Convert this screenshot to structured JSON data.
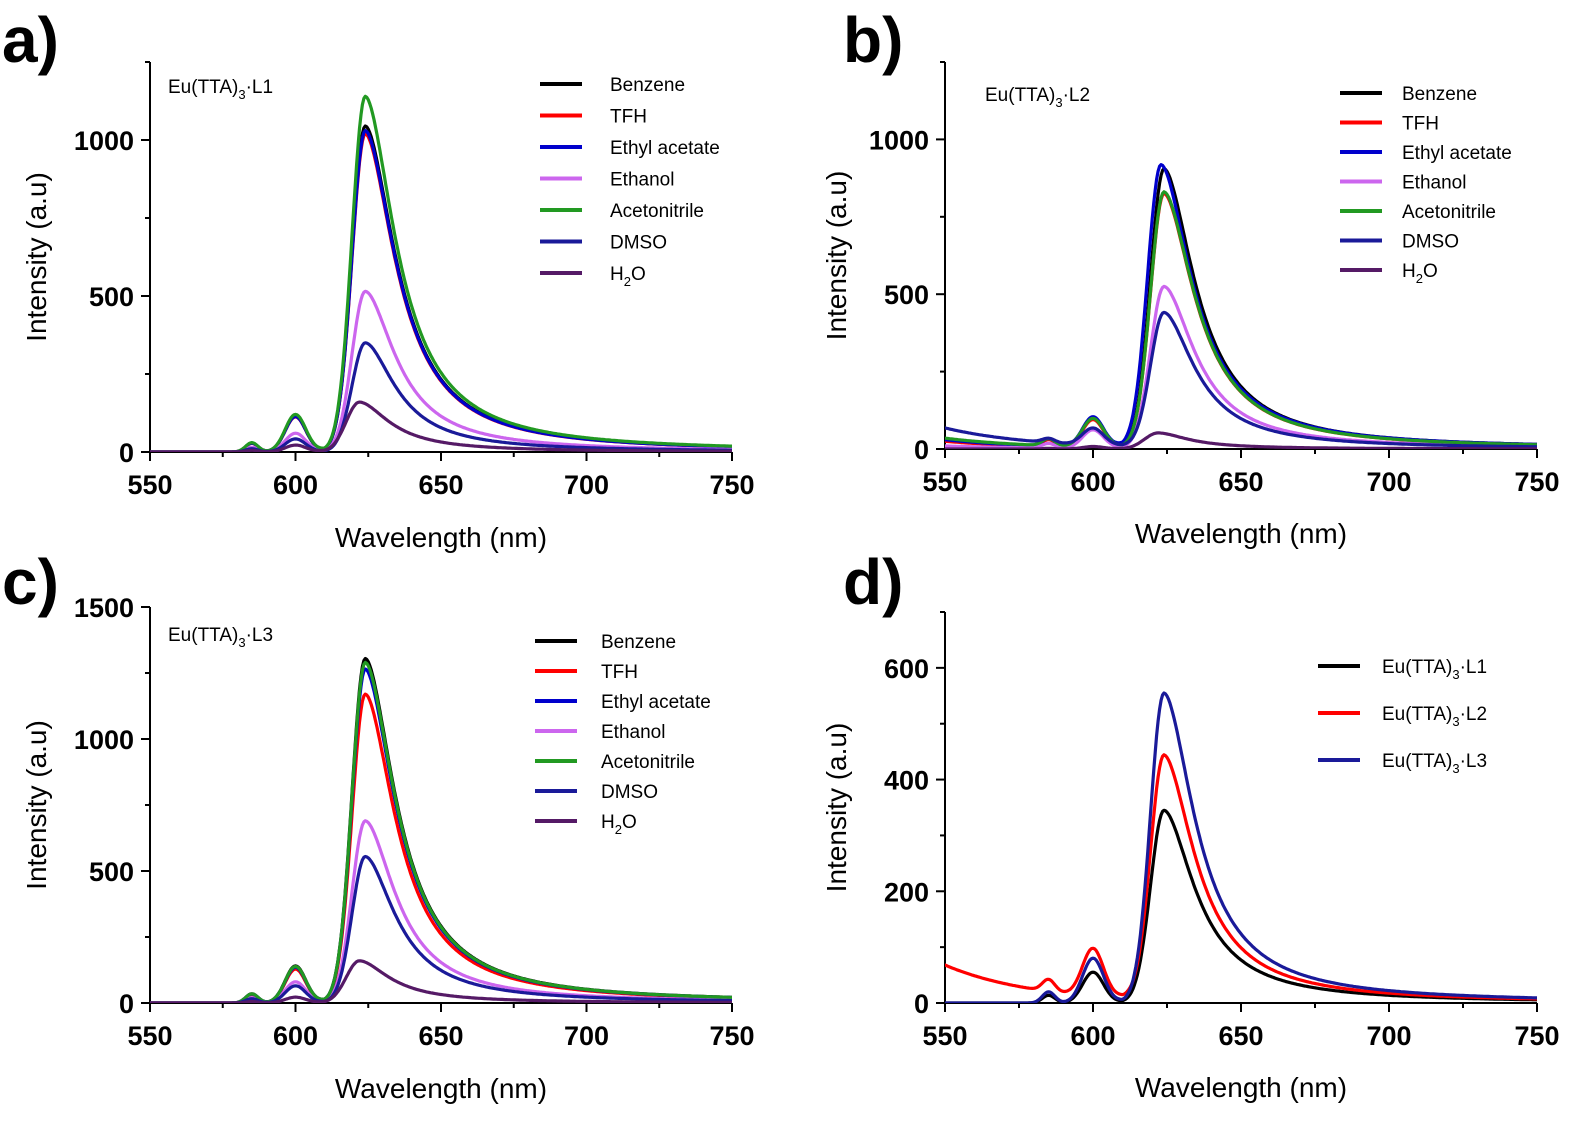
{
  "chart_data": [
    {
      "panel": "a)",
      "type": "line",
      "inset_label": {
        "prefix": "Eu(TTA)",
        "sub": "3",
        "suffix": "·L1"
      },
      "xlabel": "Wavelength (nm)",
      "ylabel": "Intensity (a.u)",
      "xlim": [
        550,
        750
      ],
      "ylim": [
        0,
        1250
      ],
      "xticks": [
        550,
        600,
        650,
        700,
        750
      ],
      "yticks": [
        0,
        500,
        1000
      ],
      "legend_position": "top-right",
      "series": [
        {
          "name": "Benzene",
          "color": "#000000",
          "peak": 1045,
          "shoulder": 115,
          "peak_x": 624,
          "tail": 0
        },
        {
          "name": "TFH",
          "color": "#ff0000",
          "peak": 1020,
          "shoulder": 112,
          "peak_x": 624,
          "tail": 0
        },
        {
          "name": "Ethyl acetate",
          "color": "#0000cc",
          "peak": 1030,
          "shoulder": 113,
          "peak_x": 624,
          "tail": 0
        },
        {
          "name": "Ethanol",
          "color": "#cc66ee",
          "peak": 515,
          "shoulder": 60,
          "peak_x": 624,
          "tail": 0
        },
        {
          "name": "Acetonitrile",
          "color": "#229922",
          "peak": 1140,
          "shoulder": 120,
          "peak_x": 624,
          "tail": 0
        },
        {
          "name": "DMSO",
          "color": "#1a1a99",
          "peak": 350,
          "shoulder": 42,
          "peak_x": 624,
          "tail": 0
        },
        {
          "name": "H2O",
          "label": "H",
          "label_sub": "2",
          "label_suffix": "O",
          "color": "#551a66",
          "peak": 160,
          "shoulder": 22,
          "peak_x": 622,
          "tail": 0
        }
      ]
    },
    {
      "panel": "b)",
      "type": "line",
      "inset_label": {
        "prefix": "Eu(TTA)",
        "sub": "3",
        "suffix": "·L2"
      },
      "xlabel": "Wavelength (nm)",
      "ylabel": "Intensity (a.u)",
      "xlim": [
        550,
        750
      ],
      "ylim": [
        0,
        1250
      ],
      "xticks": [
        550,
        600,
        650,
        700,
        750
      ],
      "yticks": [
        0,
        500,
        1000
      ],
      "legend_position": "top-right",
      "series": [
        {
          "name": "Benzene",
          "color": "#000000",
          "peak": 905,
          "shoulder": 95,
          "peak_x": 624,
          "tail": 30
        },
        {
          "name": "TFH",
          "color": "#ff0000",
          "peak": 825,
          "shoulder": 90,
          "peak_x": 624,
          "tail": 25
        },
        {
          "name": "Ethyl acetate",
          "color": "#0000cc",
          "peak": 918,
          "shoulder": 98,
          "peak_x": 623,
          "tail": 30
        },
        {
          "name": "Ethanol",
          "color": "#cc66ee",
          "peak": 525,
          "shoulder": 60,
          "peak_x": 624,
          "tail": 10
        },
        {
          "name": "Acetonitrile",
          "color": "#229922",
          "peak": 830,
          "shoulder": 92,
          "peak_x": 624,
          "tail": 35
        },
        {
          "name": "DMSO",
          "color": "#1a1a99",
          "peak": 440,
          "shoulder": 55,
          "peak_x": 624,
          "tail": 68
        },
        {
          "name": "H2O",
          "label": "H",
          "label_sub": "2",
          "label_suffix": "O",
          "color": "#551a66",
          "peak": 52,
          "shoulder": 8,
          "peak_x": 622,
          "tail": 0
        }
      ]
    },
    {
      "panel": "c)",
      "type": "line",
      "inset_label": {
        "prefix": "Eu(TTA)",
        "sub": "3",
        "suffix": "·L3"
      },
      "xlabel": "Wavelength (nm)",
      "ylabel": "Intensity (a.u)",
      "xlim": [
        550,
        750
      ],
      "ylim": [
        0,
        1500
      ],
      "xticks": [
        550,
        600,
        650,
        700,
        750
      ],
      "yticks": [
        0,
        500,
        1000,
        1500
      ],
      "legend_position": "top-right",
      "series": [
        {
          "name": "Benzene",
          "color": "#000000",
          "peak": 1305,
          "shoulder": 140,
          "peak_x": 624,
          "tail": 0
        },
        {
          "name": "TFH",
          "color": "#ff0000",
          "peak": 1170,
          "shoulder": 128,
          "peak_x": 624,
          "tail": 0
        },
        {
          "name": "Ethyl acetate",
          "color": "#0000cc",
          "peak": 1265,
          "shoulder": 135,
          "peak_x": 624,
          "tail": 0
        },
        {
          "name": "Ethanol",
          "color": "#cc66ee",
          "peak": 690,
          "shoulder": 80,
          "peak_x": 624,
          "tail": 0
        },
        {
          "name": "Acetonitrile",
          "color": "#229922",
          "peak": 1290,
          "shoulder": 138,
          "peak_x": 624,
          "tail": 0
        },
        {
          "name": "DMSO",
          "color": "#1a1a99",
          "peak": 555,
          "shoulder": 65,
          "peak_x": 624,
          "tail": 0
        },
        {
          "name": "H2O",
          "label": "H",
          "label_sub": "2",
          "label_suffix": "O",
          "color": "#551a66",
          "peak": 160,
          "shoulder": 22,
          "peak_x": 622,
          "tail": 0
        }
      ]
    },
    {
      "panel": "d)",
      "type": "line",
      "inset_label": null,
      "xlabel": "Wavelength (nm)",
      "ylabel": "Intensity (a.u)",
      "xlim": [
        550,
        750
      ],
      "ylim": [
        0,
        700
      ],
      "xticks": [
        550,
        600,
        650,
        700,
        750
      ],
      "yticks": [
        0,
        200,
        400,
        600
      ],
      "legend_position": "top-right",
      "series": [
        {
          "name": "Eu(TTA)3·L1",
          "label": "Eu(TTA)",
          "label_sub": "3",
          "label_suffix": "·L1",
          "color": "#000000",
          "peak": 345,
          "shoulder": 55,
          "peak_x": 624,
          "tail": 0
        },
        {
          "name": "Eu(TTA)3·L2",
          "label": "Eu(TTA)",
          "label_sub": "3",
          "label_suffix": "·L2",
          "color": "#ff0000",
          "peak": 443,
          "shoulder": 85,
          "peak_x": 624,
          "tail": 68
        },
        {
          "name": "Eu(TTA)3·L3",
          "label": "Eu(TTA)",
          "label_sub": "3",
          "label_suffix": "·L3",
          "color": "#1a1a99",
          "peak": 555,
          "shoulder": 80,
          "peak_x": 624,
          "tail": 0
        }
      ]
    }
  ]
}
